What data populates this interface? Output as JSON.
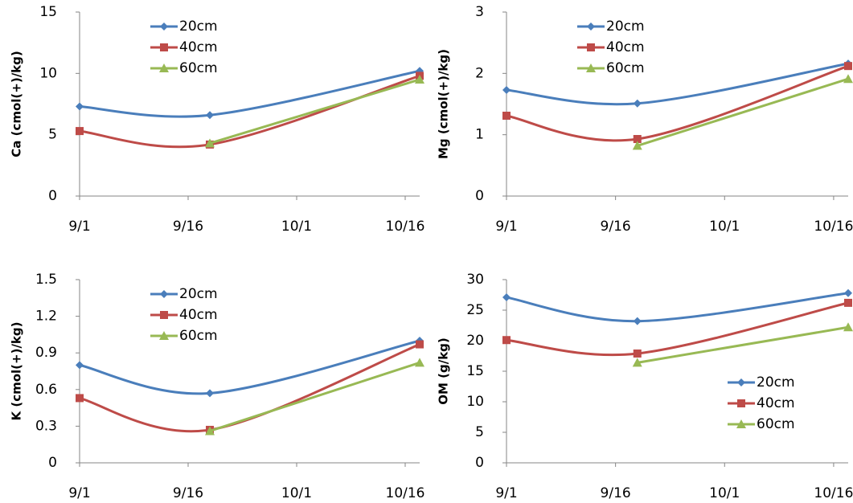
{
  "chart_data": [
    {
      "type": "line",
      "y_label": "Ca (cmol(+)/kg)",
      "x": [
        0,
        18,
        47
      ],
      "xlim": [
        0,
        47
      ],
      "xticks": [
        {
          "value": 0,
          "label": "9/1"
        },
        {
          "value": 15,
          "label": "9/16"
        },
        {
          "value": 30,
          "label": "10/1"
        },
        {
          "value": 45,
          "label": "10/16"
        }
      ],
      "ylim": [
        0,
        15
      ],
      "yticks": [
        0,
        5,
        10,
        15
      ],
      "grid": false,
      "legend": "upper left",
      "smooth": true,
      "series": [
        {
          "name": "20cm",
          "color": "#4a7ebb",
          "values": [
            7.3,
            6.6,
            10.2
          ]
        },
        {
          "name": "40cm",
          "color": "#be4b48",
          "values": [
            5.3,
            4.2,
            9.8
          ]
        },
        {
          "name": "60cm",
          "color": "#98b954",
          "values": [
            null,
            4.3,
            9.5
          ]
        }
      ]
    },
    {
      "type": "line",
      "y_label": "Mg (cmol(+)/kg)",
      "x": [
        0,
        18,
        47
      ],
      "xlim": [
        0,
        47
      ],
      "xticks": [
        {
          "value": 0,
          "label": "9/1"
        },
        {
          "value": 15,
          "label": "9/16"
        },
        {
          "value": 30,
          "label": "10/1"
        },
        {
          "value": 45,
          "label": "10/16"
        }
      ],
      "ylim": [
        0,
        3
      ],
      "yticks": [
        0,
        1,
        2,
        3
      ],
      "grid": false,
      "legend": "upper left",
      "smooth": true,
      "series": [
        {
          "name": "20cm",
          "color": "#4a7ebb",
          "values": [
            1.73,
            1.51,
            2.16
          ]
        },
        {
          "name": "40cm",
          "color": "#be4b48",
          "values": [
            1.31,
            0.93,
            2.12
          ]
        },
        {
          "name": "60cm",
          "color": "#98b954",
          "values": [
            null,
            0.82,
            1.91
          ]
        }
      ]
    },
    {
      "type": "line",
      "y_label": "K (cmol(+)/kg)",
      "x": [
        0,
        18,
        47
      ],
      "xlim": [
        0,
        47
      ],
      "xticks": [
        {
          "value": 0,
          "label": "9/1"
        },
        {
          "value": 15,
          "label": "9/16"
        },
        {
          "value": 30,
          "label": "10/1"
        },
        {
          "value": 45,
          "label": "10/16"
        }
      ],
      "ylim": [
        0,
        1.5
      ],
      "yticks": [
        0,
        0.3,
        0.6,
        0.9,
        1.2,
        1.5
      ],
      "grid": false,
      "legend": "upper left",
      "smooth": true,
      "series": [
        {
          "name": "20cm",
          "color": "#4a7ebb",
          "values": [
            0.8,
            0.57,
            1.0
          ]
        },
        {
          "name": "40cm",
          "color": "#be4b48",
          "values": [
            0.53,
            0.27,
            0.97
          ]
        },
        {
          "name": "60cm",
          "color": "#98b954",
          "values": [
            null,
            0.26,
            0.82
          ]
        }
      ]
    },
    {
      "type": "line",
      "y_label": "OM (g/kg)",
      "x": [
        0,
        18,
        47
      ],
      "xlim": [
        0,
        47
      ],
      "xticks": [
        {
          "value": 0,
          "label": "9/1"
        },
        {
          "value": 15,
          "label": "9/16"
        },
        {
          "value": 30,
          "label": "10/1"
        },
        {
          "value": 45,
          "label": "10/16"
        }
      ],
      "ylim": [
        0,
        30
      ],
      "yticks": [
        0,
        5,
        10,
        15,
        20,
        25,
        30
      ],
      "grid": false,
      "legend": "lower right",
      "smooth": true,
      "series": [
        {
          "name": "20cm",
          "color": "#4a7ebb",
          "values": [
            27.1,
            23.2,
            27.8
          ]
        },
        {
          "name": "40cm",
          "color": "#be4b48",
          "values": [
            20.1,
            17.9,
            26.2
          ]
        },
        {
          "name": "60cm",
          "color": "#98b954",
          "values": [
            null,
            16.4,
            22.2
          ]
        }
      ]
    }
  ]
}
